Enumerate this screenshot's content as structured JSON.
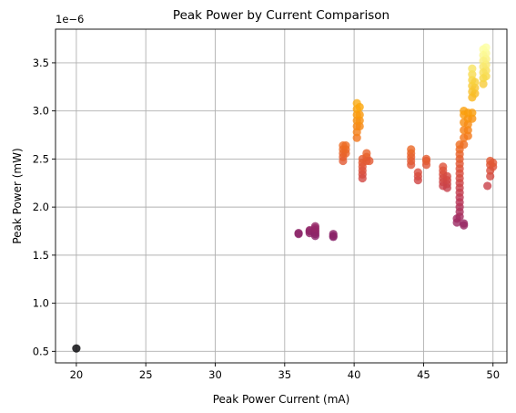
{
  "chart_data": {
    "type": "scatter",
    "title": "Peak Power by Current Comparison",
    "xlabel": "Peak Power Current (mA)",
    "ylabel": "Peak Power (mW)",
    "y_scale_label": "1e−6",
    "xlim": [
      18.5,
      51.0
    ],
    "ylim": [
      0.38,
      3.85
    ],
    "xticks": [
      20,
      25,
      30,
      35,
      40,
      45,
      50
    ],
    "yticks": [
      0.5,
      1.0,
      1.5,
      2.0,
      2.5,
      3.0,
      3.5
    ],
    "xtick_labels": [
      "20",
      "25",
      "30",
      "35",
      "40",
      "45",
      "50"
    ],
    "ytick_labels": [
      "0.5",
      "1.0",
      "1.5",
      "2.0",
      "2.5",
      "3.0",
      "3.5"
    ],
    "grid": true,
    "colormap": "inferno",
    "color_by": "y",
    "clusters": [
      {
        "x": 20.0,
        "y": [
          0.53
        ]
      },
      {
        "x": 36.0,
        "y": [
          1.72,
          1.73
        ]
      },
      {
        "x": 36.8,
        "y": [
          1.73,
          1.75,
          1.76
        ]
      },
      {
        "x": 37.2,
        "y": [
          1.7,
          1.72,
          1.74,
          1.76,
          1.78,
          1.8
        ]
      },
      {
        "x": 38.5,
        "y": [
          1.69,
          1.7,
          1.72
        ]
      },
      {
        "x": 39.2,
        "y": [
          2.48,
          2.52,
          2.56,
          2.6,
          2.64
        ]
      },
      {
        "x": 39.4,
        "y": [
          2.56,
          2.6,
          2.64
        ]
      },
      {
        "x": 40.2,
        "y": [
          2.72,
          2.78,
          2.84,
          2.9,
          2.96,
          3.02,
          3.08
        ]
      },
      {
        "x": 40.4,
        "y": [
          2.84,
          2.9,
          2.96,
          3.04
        ]
      },
      {
        "x": 40.6,
        "y": [
          2.3,
          2.34,
          2.38,
          2.42,
          2.46,
          2.5
        ]
      },
      {
        "x": 40.9,
        "y": [
          2.48,
          2.52,
          2.56
        ]
      },
      {
        "x": 41.1,
        "y": [
          2.48
        ]
      },
      {
        "x": 44.1,
        "y": [
          2.44,
          2.48,
          2.52,
          2.56,
          2.6
        ]
      },
      {
        "x": 44.6,
        "y": [
          2.28,
          2.32,
          2.36
        ]
      },
      {
        "x": 45.2,
        "y": [
          2.44,
          2.48,
          2.5
        ]
      },
      {
        "x": 46.4,
        "y": [
          2.22,
          2.26,
          2.3,
          2.34,
          2.38,
          2.42
        ]
      },
      {
        "x": 46.7,
        "y": [
          2.2,
          2.24,
          2.28,
          2.32
        ]
      },
      {
        "x": 47.4,
        "y": [
          1.84,
          1.88
        ]
      },
      {
        "x": 47.6,
        "y": [
          1.9,
          1.95,
          2.0,
          2.05,
          2.1,
          2.15,
          2.2,
          2.25,
          2.3,
          2.35,
          2.4,
          2.45,
          2.5,
          2.55,
          2.6,
          2.65
        ]
      },
      {
        "x": 47.9,
        "y": [
          1.81,
          1.83
        ]
      },
      {
        "x": 47.9,
        "y": [
          2.65,
          2.72,
          2.8,
          2.88,
          2.96,
          3.0
        ]
      },
      {
        "x": 48.2,
        "y": [
          2.74,
          2.8,
          2.86,
          2.92,
          2.98
        ]
      },
      {
        "x": 48.5,
        "y": [
          2.92,
          2.98
        ]
      },
      {
        "x": 48.5,
        "y": [
          3.14,
          3.2,
          3.26,
          3.32,
          3.38,
          3.44
        ]
      },
      {
        "x": 48.7,
        "y": [
          3.18,
          3.24,
          3.3
        ]
      },
      {
        "x": 49.3,
        "y": [
          3.28,
          3.34,
          3.4,
          3.46,
          3.52,
          3.58,
          3.64
        ]
      },
      {
        "x": 49.5,
        "y": [
          3.36,
          3.42,
          3.48,
          3.54,
          3.6,
          3.66
        ]
      },
      {
        "x": 49.6,
        "y": [
          2.22
        ]
      },
      {
        "x": 49.8,
        "y": [
          2.32,
          2.38,
          2.44,
          2.48
        ]
      },
      {
        "x": 50.0,
        "y": [
          2.42,
          2.46
        ]
      }
    ]
  }
}
